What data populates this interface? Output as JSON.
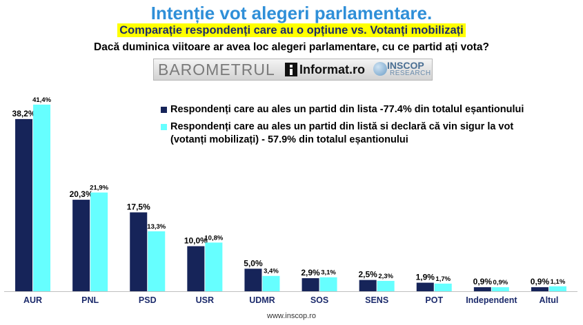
{
  "header": {
    "title": "Intenție vot alegeri parlamentare.",
    "subtitle": "Comparație respondenți care au o opțiune vs. Votanți mobilizați",
    "question": "Dacă duminica viitoare ar avea loc alegeri parlamentare, cu ce partid ați vota?"
  },
  "logos": {
    "barometrul": "BAROMETRUL",
    "informat": "Informat.ro",
    "inscop": "INSCOP",
    "research": "RESEARCH"
  },
  "footer": {
    "url": "www.inscop.ro"
  },
  "colors": {
    "series1": "#162459",
    "series2": "#66ffff",
    "title": "#2f8fd8",
    "highlight": "#ffff00"
  },
  "chart_data": {
    "type": "bar",
    "categories": [
      "AUR",
      "PNL",
      "PSD",
      "USR",
      "UDMR",
      "SOS",
      "SENS",
      "POT",
      "Independent",
      "Altul"
    ],
    "series": [
      {
        "name": "Respondenți care au ales un partid din lista -77.4% din totalul eșantionului",
        "values": [
          38.2,
          20.3,
          17.5,
          10.0,
          5.0,
          2.9,
          2.5,
          1.9,
          0.9,
          0.9
        ],
        "labels": [
          "38,2%",
          "20,3%",
          "17,5%",
          "10,0%",
          "5,0%",
          "2,9%",
          "2,5%",
          "1,9%",
          "0,9%",
          "0,9%"
        ]
      },
      {
        "name": "Respondenți care au ales un partid din listă si declară că vin sigur la vot (votanți mobilizați) - 57.9% din totalul eșantionului",
        "values": [
          41.4,
          21.9,
          13.3,
          10.8,
          3.4,
          3.1,
          2.3,
          1.7,
          0.9,
          1.1
        ],
        "labels": [
          "41,4%",
          "21,9%",
          "13,3%",
          "10,8%",
          "3,4%",
          "3,1%",
          "2,3%",
          "1,7%",
          "0,9%",
          "1,1%"
        ]
      }
    ],
    "ylim": [
      0,
      42
    ],
    "legend_position": "top-right"
  }
}
